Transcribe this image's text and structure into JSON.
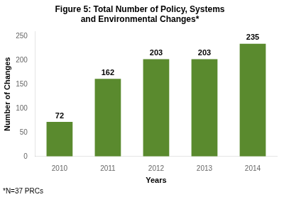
{
  "chart_data": {
    "type": "bar",
    "title": "Figure 5: Total Number of Policy, Systems\nand Environmental Changes*",
    "x_label": "Years",
    "y_label": "Number of Changes",
    "annotations": [
      "*N=37 PRCs"
    ],
    "categories": [
      "2010",
      "2011",
      "2012",
      "2013",
      "2014"
    ],
    "values": [
      72,
      162,
      203,
      203,
      235
    ],
    "color": "#5a8a2e",
    "ylim": [
      0,
      260
    ],
    "yticks": [
      0,
      50,
      100,
      150,
      200,
      250
    ],
    "grid": false,
    "data_labels": true
  }
}
